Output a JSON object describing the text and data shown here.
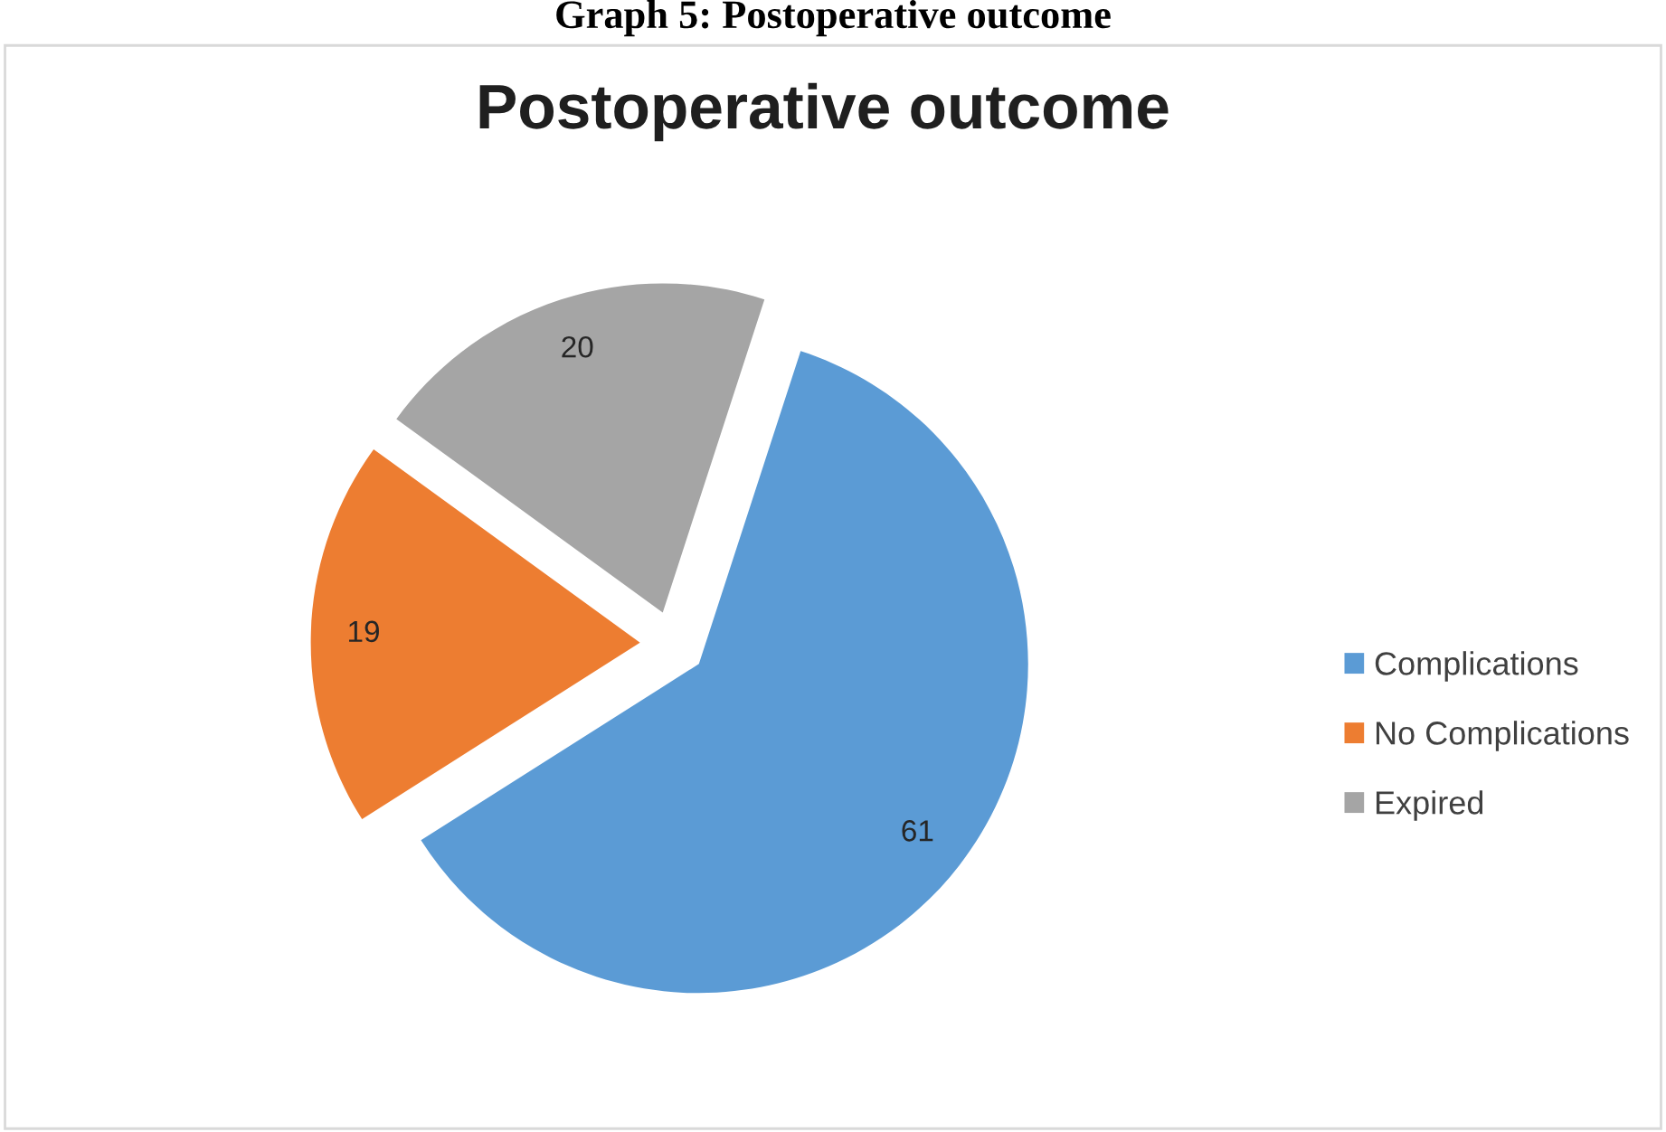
{
  "chart_data": {
    "type": "pie",
    "title": "Postoperative outcome",
    "annotations": [
      "Graph 5: Postoperative outcome"
    ],
    "categories": [
      "Complications",
      "No Complications",
      "Expired"
    ],
    "values": [
      61,
      19,
      20
    ],
    "colors": [
      "#5b9bd5",
      "#ed7d31",
      "#a5a5a5"
    ],
    "data_labels": true,
    "legend": "right"
  }
}
